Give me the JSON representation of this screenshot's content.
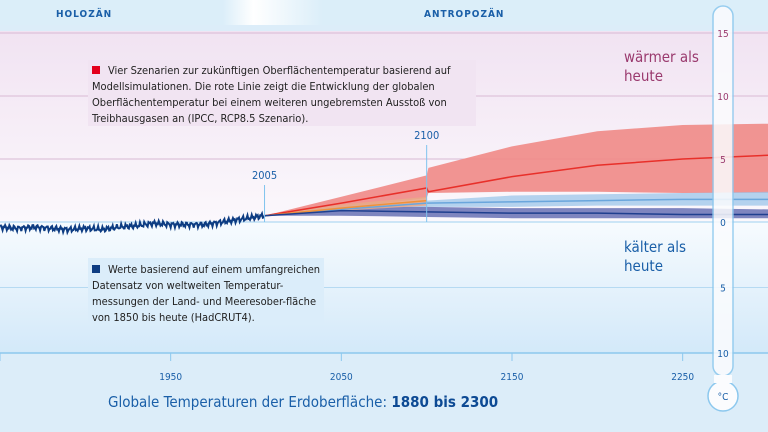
{
  "eras": {
    "left": "HOLOZÄN",
    "right": "ANTROPOZÄN"
  },
  "legend": {
    "scenarios": "Vier Szenarien zur zukünftigen Oberflächentemperatur basierend auf Modellsimulationen. Die rote Linie zeigt die Entwicklung der globalen Oberflächentemperatur bei einem weiteren ungebremsten Ausstoß von Treibhausgasen an (IPCC, RCP8.5 Szenario).",
    "observed": "Werte basierend auf einem umfangreichen Datensatz von weltweiten Temperatur-messungen der Land- und Meeresober-fläche von 1850 bis heute (HadCRUT4)."
  },
  "zones": {
    "warmer": "wärmer als heute",
    "colder": "kälter als heute"
  },
  "title": {
    "main": "Globale Temperaturen der Erdoberfläche: ",
    "bold": "1880 bis 2300"
  },
  "colors": {
    "red": "#e8302a",
    "red_band": "#f08a86",
    "lightblue": "#9cc6ea",
    "darkblue": "#1f3f8f",
    "darkblue_band": "#7078b8",
    "observed": "#0d3c82",
    "orange": "#f0913a",
    "accent": "#1a5fa8"
  },
  "chart_data": {
    "type": "line",
    "xlim": [
      1850,
      2300
    ],
    "ylim": [
      -10,
      15
    ],
    "unit": "°C",
    "x_ticks": [
      "1950",
      "2050",
      "2150",
      "2250"
    ],
    "y_ticks_warm": [
      "15",
      "10",
      "5",
      "0"
    ],
    "y_ticks_cold": [
      "5",
      "10"
    ],
    "markers": [
      "2005",
      "2100"
    ],
    "observed": {
      "x": [
        1850,
        1860,
        1870,
        1880,
        1890,
        1900,
        1910,
        1920,
        1930,
        1940,
        1950,
        1960,
        1970,
        1980,
        1990,
        2000,
        2005
      ],
      "y": [
        -0.4,
        -0.5,
        -0.4,
        -0.5,
        -0.6,
        -0.5,
        -0.6,
        -0.4,
        -0.3,
        -0.1,
        -0.2,
        -0.2,
        -0.2,
        0.0,
        0.2,
        0.4,
        0.5
      ]
    },
    "series": [
      {
        "key": "rcp85",
        "x": [
          2005,
          2050,
          2100,
          2101,
          2150,
          2200,
          2250,
          2300
        ],
        "mean": [
          0.5,
          1.5,
          2.7,
          2.4,
          3.6,
          4.5,
          5.0,
          5.3
        ],
        "low": [
          0.5,
          1.1,
          1.9,
          2.3,
          2.4,
          2.4,
          2.3,
          2.3
        ],
        "high": [
          0.5,
          2.0,
          3.7,
          4.3,
          6.0,
          7.2,
          7.7,
          7.8
        ]
      },
      {
        "key": "rcp60",
        "x": [
          2005,
          2050,
          2100,
          2150,
          2200,
          2250,
          2300
        ],
        "mean": [
          0.5,
          1.0,
          1.5,
          1.6,
          1.7,
          1.8,
          1.8
        ],
        "low": [
          0.5,
          0.8,
          1.2,
          1.2,
          1.3,
          1.3,
          1.3
        ],
        "high": [
          0.5,
          1.3,
          1.7,
          2.1,
          2.2,
          2.3,
          2.4
        ]
      },
      {
        "key": "rcp45",
        "x": [
          2005,
          2050,
          2100
        ],
        "mean": [
          0.5,
          1.1,
          1.7
        ],
        "low": [
          0.5,
          0.9,
          1.3
        ],
        "high": [
          0.5,
          1.4,
          2.0
        ]
      },
      {
        "key": "rcp26",
        "x": [
          2005,
          2050,
          2100,
          2150,
          2200,
          2250,
          2300
        ],
        "mean": [
          0.5,
          0.9,
          0.8,
          0.7,
          0.7,
          0.6,
          0.6
        ],
        "low": [
          0.5,
          0.5,
          0.4,
          0.3,
          0.3,
          0.3,
          0.3
        ],
        "high": [
          0.5,
          1.2,
          1.2,
          1.1,
          1.1,
          1.1,
          1.0
        ]
      }
    ]
  }
}
